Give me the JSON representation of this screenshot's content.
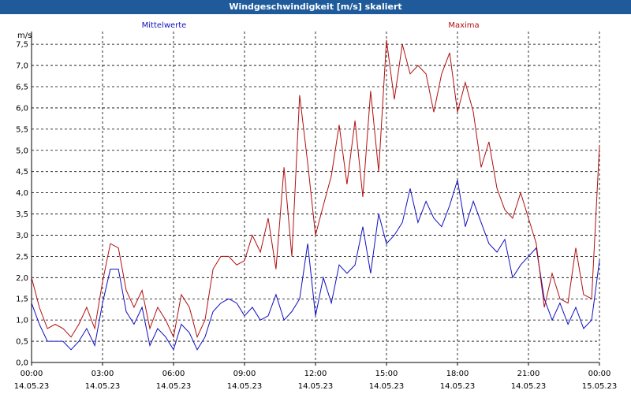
{
  "window": {
    "title": "Windgeschwindigkeit [m/s] skaliert"
  },
  "chart_data": {
    "type": "line",
    "title": "Windgeschwindigkeit [m/s] skaliert",
    "ylabel": "m/s",
    "xlabel": "",
    "ylim": [
      0,
      7.8
    ],
    "yticks": [
      "0,0",
      "0,5",
      "1,0",
      "1,5",
      "2,0",
      "2,5",
      "3,0",
      "3,5",
      "4,0",
      "4,5",
      "5,0",
      "5,5",
      "6,0",
      "6,5",
      "7,0",
      "7,5"
    ],
    "xticks": [
      {
        "time": "00:00",
        "date": "14.05.23"
      },
      {
        "time": "03:00",
        "date": "14.05.23"
      },
      {
        "time": "06:00",
        "date": "14.05.23"
      },
      {
        "time": "09:00",
        "date": "14.05.23"
      },
      {
        "time": "12:00",
        "date": "14.05.23"
      },
      {
        "time": "15:00",
        "date": "14.05.23"
      },
      {
        "time": "18:00",
        "date": "14.05.23"
      },
      {
        "time": "21:00",
        "date": "14.05.23"
      },
      {
        "time": "00:00",
        "date": "15.05.23"
      }
    ],
    "x_hours": [
      0,
      0.33,
      0.67,
      1,
      1.33,
      1.67,
      2,
      2.33,
      2.67,
      3,
      3.33,
      3.67,
      4,
      4.33,
      4.67,
      5,
      5.33,
      5.67,
      6,
      6.33,
      6.67,
      7,
      7.33,
      7.67,
      8,
      8.33,
      8.67,
      9,
      9.33,
      9.67,
      10,
      10.33,
      10.67,
      11,
      11.33,
      11.67,
      12,
      12.33,
      12.67,
      13,
      13.33,
      13.67,
      14,
      14.33,
      14.67,
      15,
      15.33,
      15.67,
      16,
      16.33,
      16.67,
      17,
      17.33,
      17.67,
      18,
      18.33,
      18.67,
      19,
      19.33,
      19.67,
      20,
      20.33,
      20.67,
      21,
      21.33,
      21.67,
      22,
      22.33,
      22.67,
      23,
      23.33,
      23.67,
      24
    ],
    "grid": true,
    "legend": "top",
    "series": [
      {
        "name": "Mittelwerte",
        "color": "#1010c0",
        "values": [
          1.4,
          0.9,
          0.5,
          0.5,
          0.5,
          0.3,
          0.5,
          0.8,
          0.4,
          1.4,
          2.2,
          2.2,
          1.2,
          0.9,
          1.3,
          0.4,
          0.8,
          0.6,
          0.3,
          0.9,
          0.7,
          0.3,
          0.6,
          1.2,
          1.4,
          1.5,
          1.4,
          1.1,
          1.3,
          1.0,
          1.1,
          1.6,
          1.0,
          1.2,
          1.5,
          2.8,
          1.1,
          2.0,
          1.4,
          2.3,
          2.1,
          2.3,
          3.2,
          2.1,
          3.5,
          2.8,
          3.0,
          3.3,
          4.1,
          3.3,
          3.8,
          3.4,
          3.2,
          3.7,
          4.3,
          3.2,
          3.8,
          3.3,
          2.8,
          2.6,
          2.9,
          2.0,
          2.3,
          2.5,
          2.7,
          1.5,
          1.0,
          1.4,
          0.9,
          1.3,
          0.8,
          1.0,
          2.4
        ]
      },
      {
        "name": "Maxima",
        "color": "#b01010",
        "values": [
          2.0,
          1.3,
          0.8,
          0.9,
          0.8,
          0.6,
          0.9,
          1.3,
          0.8,
          1.9,
          2.8,
          2.7,
          1.7,
          1.3,
          1.7,
          0.8,
          1.3,
          1.0,
          0.6,
          1.6,
          1.3,
          0.6,
          1.0,
          2.2,
          2.5,
          2.5,
          2.3,
          2.4,
          3.0,
          2.6,
          3.4,
          2.2,
          4.6,
          2.5,
          6.3,
          4.7,
          3.0,
          3.7,
          4.4,
          5.6,
          4.2,
          5.7,
          3.9,
          6.4,
          4.5,
          7.6,
          6.2,
          7.5,
          6.8,
          7.0,
          6.8,
          5.9,
          6.8,
          7.3,
          5.9,
          6.6,
          5.9,
          4.6,
          5.2,
          4.1,
          3.6,
          3.4,
          4.0,
          3.4,
          2.8,
          1.3,
          2.1,
          1.5,
          1.4,
          2.7,
          1.6,
          1.5,
          5.1
        ]
      }
    ]
  }
}
